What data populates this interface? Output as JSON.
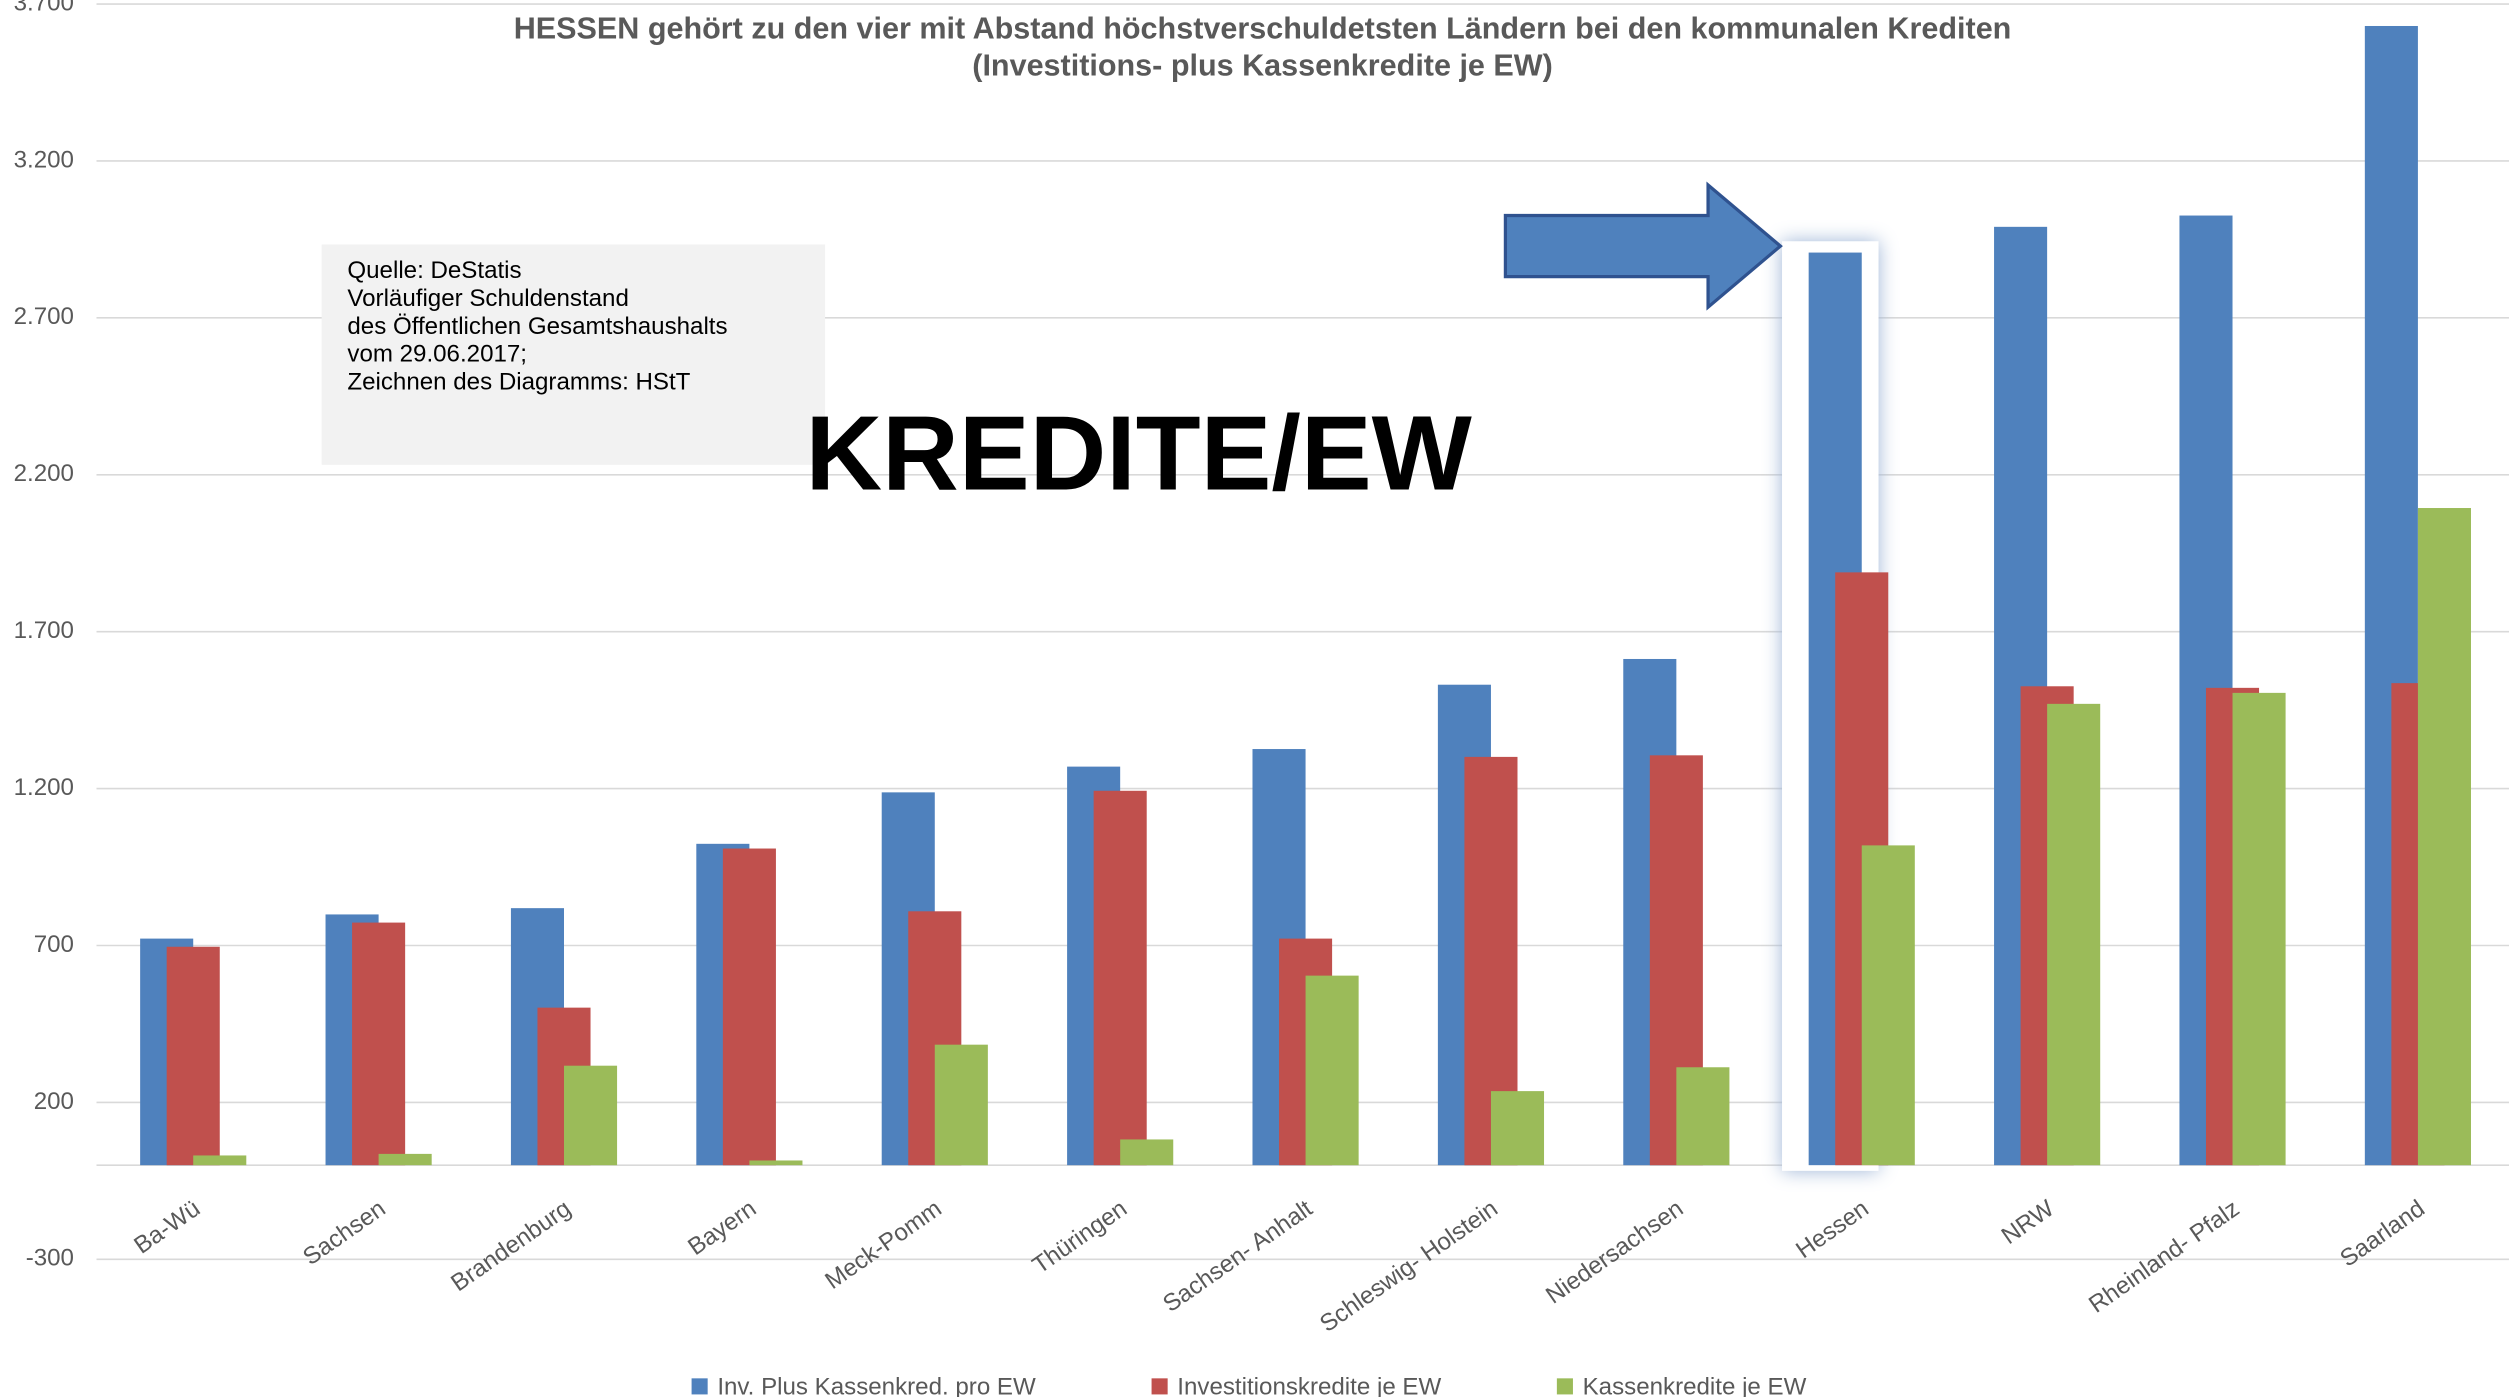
{
  "chart_data": {
    "type": "bar",
    "title": "HESSEN gehört zu den vier mit Abstand höchstverschuldetsten  Ländern bei den kommunalen Krediten",
    "subtitle": "(Investitions-  plus  Kassenkredite je EW)",
    "annotations": {
      "source": [
        "Quelle:  DeStatis",
        "Vorläufiger Schuldenstand",
        "des Öffentlichen Gesamtshaushalts",
        "vom 29.06.2017;",
        "Zeichnen des Diagramms: HStT"
      ],
      "overlay": "KREDITE/EW"
    },
    "categories": [
      "Ba-Wü",
      "Sachsen",
      "Brandenburg",
      "Bayern",
      "Meck-Pomm",
      "Thüringen",
      "Sachsen- Anhalt",
      "Schleswig- Holstein",
      "Niedersachsen",
      "Hessen",
      "NRW",
      "Rheinland- Pfalz",
      "Saarland"
    ],
    "series": [
      {
        "name": "Inv. Plus Kassenkred. pro EW",
        "color": "#4f81bd",
        "values": [
          722,
          799,
          819,
          1024,
          1188,
          1270,
          1326,
          1531,
          1613,
          2908,
          2990,
          3026,
          3630
        ]
      },
      {
        "name": "Investitionskredite je EW",
        "color": "#c0504d",
        "values": [
          696,
          773,
          502,
          1009,
          809,
          1193,
          722,
          1301,
          1306,
          1889,
          1526,
          1521,
          1536
        ]
      },
      {
        "name": "Kassenkredite je EW",
        "color": "#9bbb59",
        "values": [
          31,
          36,
          317,
          15,
          384,
          82,
          604,
          236,
          312,
          1019,
          1470,
          1505,
          2094
        ]
      }
    ],
    "ylim": [
      -300,
      3700
    ],
    "yticks": [
      -300,
      200,
      700,
      {
        "value": 1200,
        "label": "1.200"
      },
      {
        "value": 1700,
        "label": "1.700"
      },
      {
        "value": 2200,
        "label": "2.200"
      },
      {
        "value": 2700,
        "label": "2.700"
      },
      {
        "value": 3200,
        "label": "3.200"
      },
      {
        "value": 3700,
        "label": "3.700"
      }
    ],
    "grid": true,
    "legend": "bottom"
  }
}
